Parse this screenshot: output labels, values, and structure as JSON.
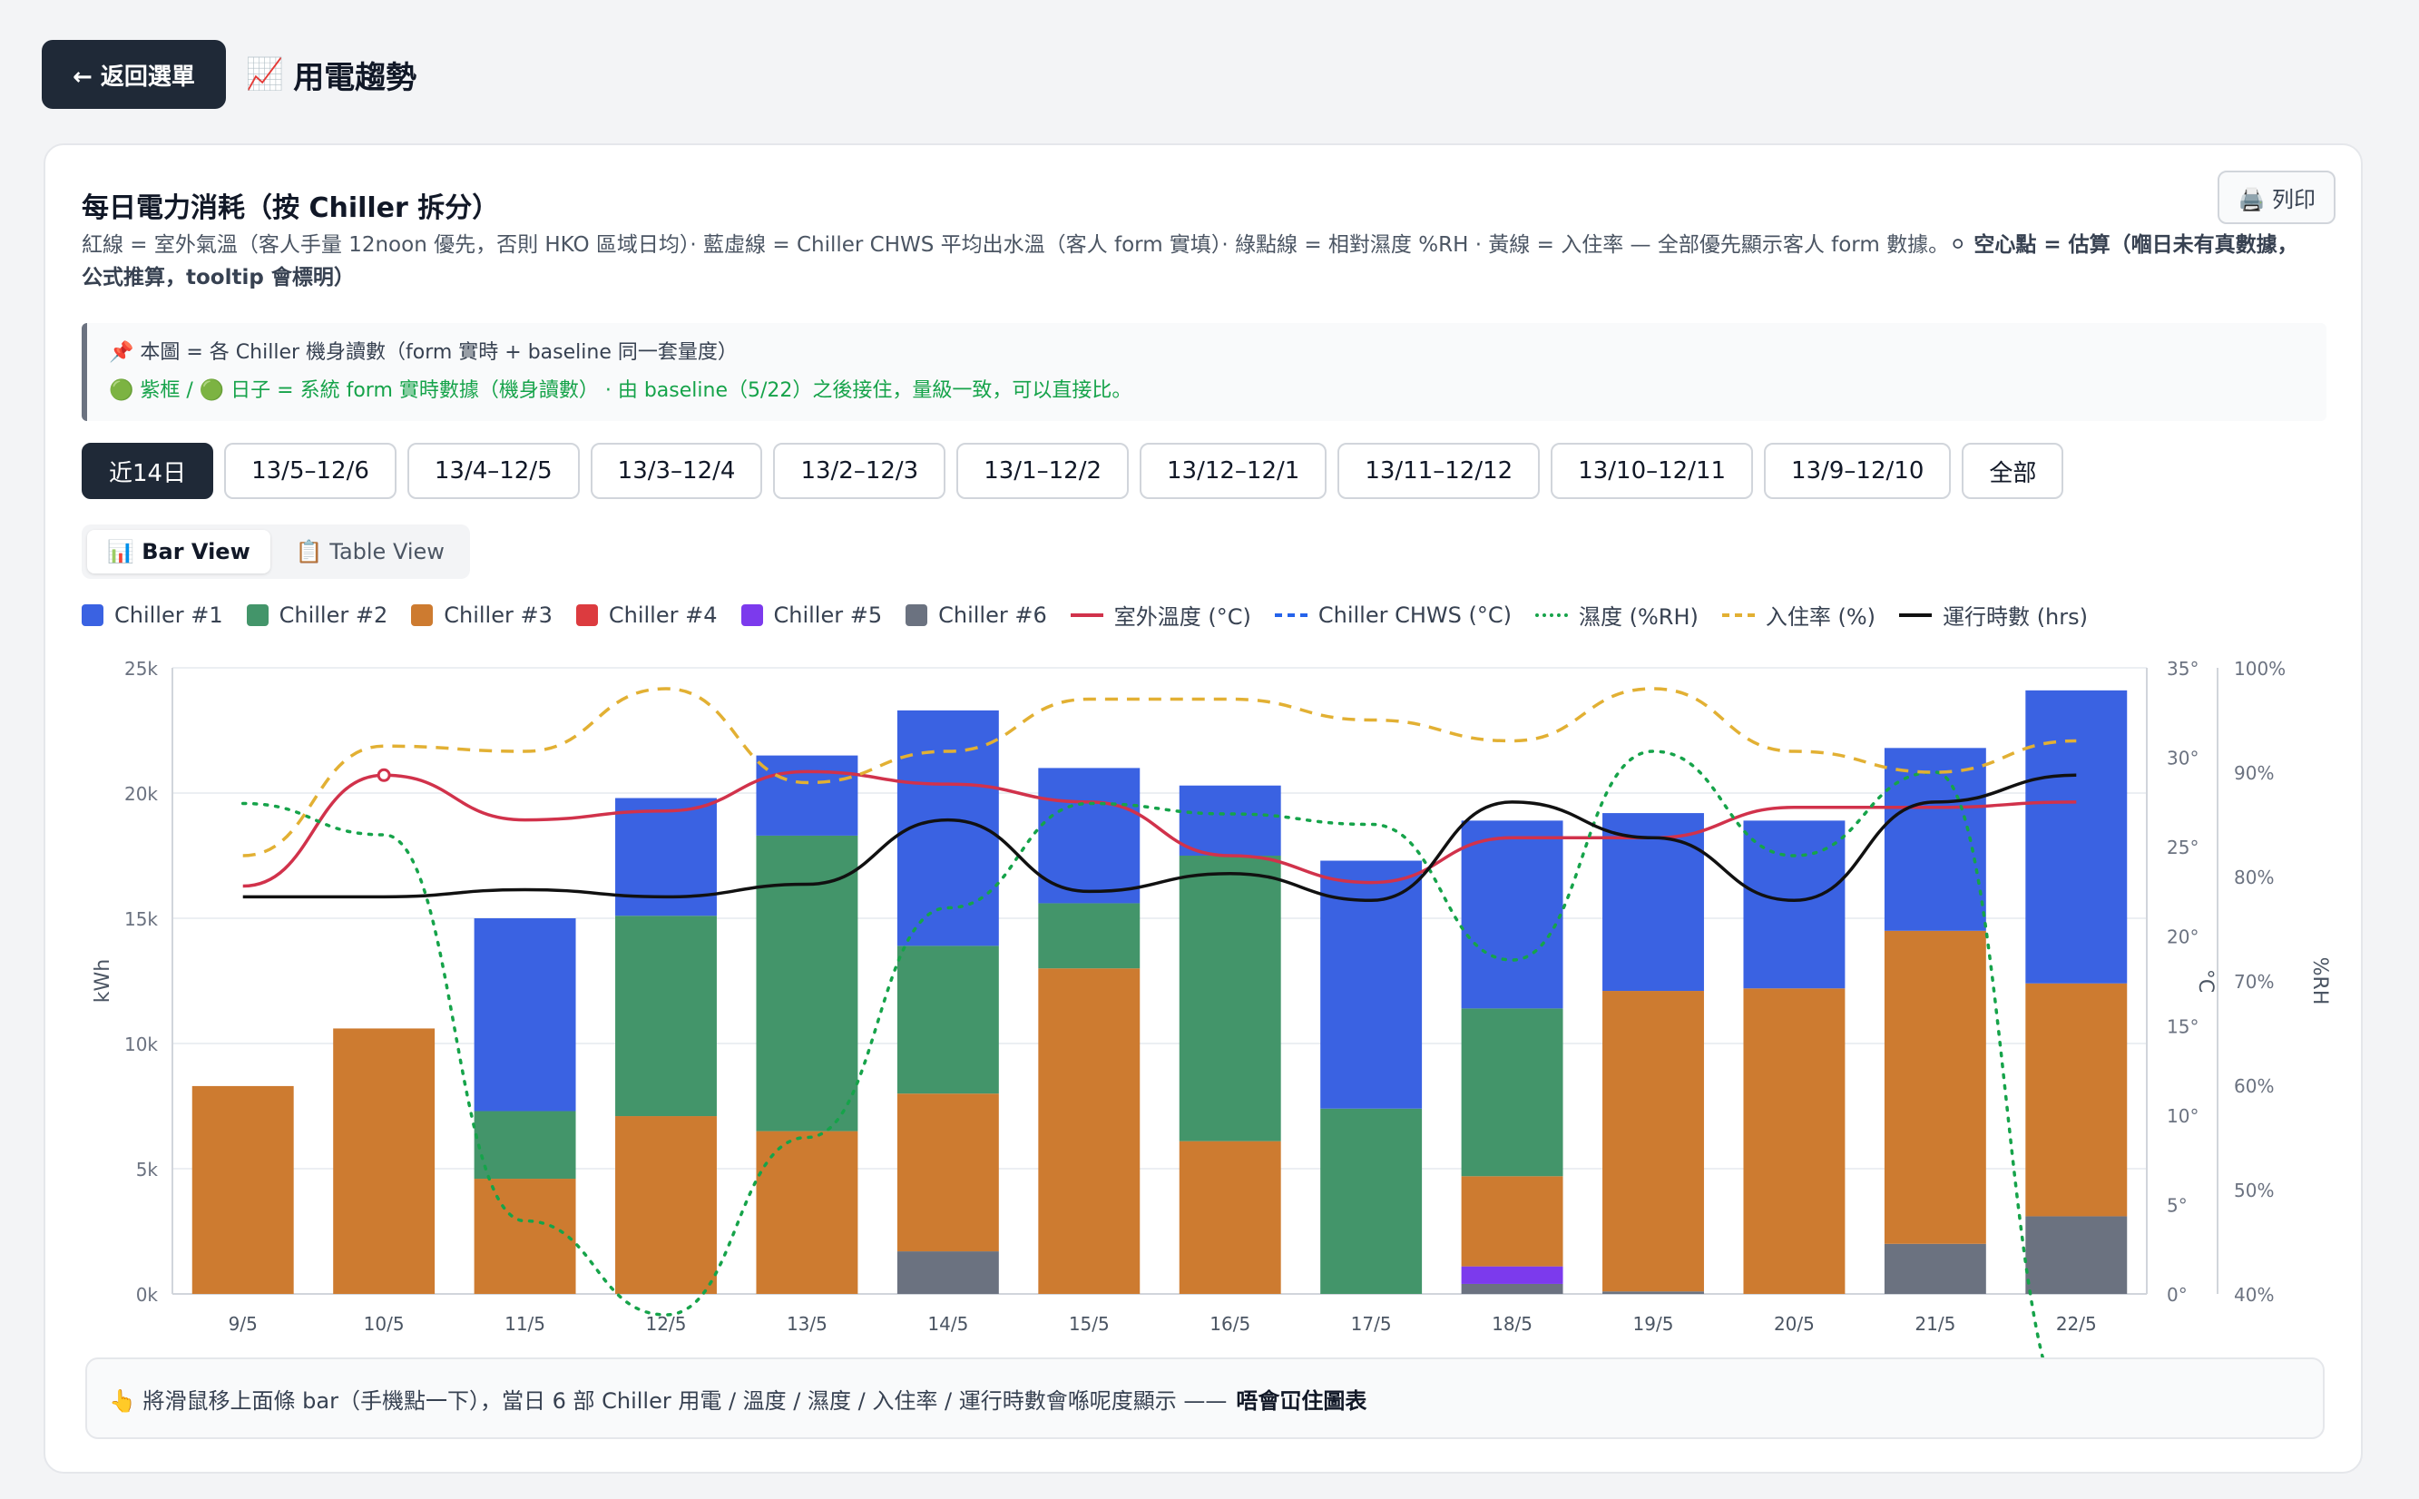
{
  "header": {
    "back_label": "← 返回選單",
    "title_icon": "📈",
    "title": "用電趨勢"
  },
  "card": {
    "title": "每日電力消耗（按 Chiller 拆分）",
    "print_label": "🖨️ 列印",
    "desc_main": "紅線 = 室外氣溫（客人手量 12noon 優先，否則 HKO 區域日均）· 藍虛線 = Chiller CHWS 平均出水溫（客人 form 實填）· 綠點線 = 相對濕度 %RH · 黃線 = 入住率 — 全部優先顯示客人 form 數據。",
    "desc_bold": "⚪ 空心點 = 估算（嗰日未有真數據，公式推算，tooltip 會標明）",
    "note_line1": "📌 本圖 = 各 Chiller 機身讀數（form 實時 + baseline 同一套量度）",
    "note_line2": "🟢 紫框 / 🟢 日子 = 系統 form 實時數據（機身讀數） · 由 baseline（5/22）之後接住，量級一致，可以直接比。",
    "ranges": [
      "近14日",
      "13/5–12/6",
      "13/4–12/5",
      "13/3–12/4",
      "13/2–12/3",
      "13/1–12/2",
      "13/12–12/1",
      "13/11–12/12",
      "13/10–12/11",
      "13/9–12/10",
      "全部"
    ],
    "views": [
      "📊 Bar View",
      "📋 Table View"
    ],
    "hint_main": "👆 將滑鼠移上面條 bar（手機點一下），當日 6 部 Chiller 用電 / 溫度 / 濕度 / 入住率 / 運行時數會喺呢度顯示 ——",
    "hint_bold": "唔會冚住圖表"
  },
  "colors": {
    "chiller1": "#3a62e2",
    "chiller2": "#43956a",
    "chiller3": "#cd7b30",
    "chiller4": "#dc3b3f",
    "chiller5": "#7c3aed",
    "chiller6": "#6b7280",
    "outdoor": "#d1324b",
    "chws": "#2563eb",
    "humidity": "#16a34a",
    "occupancy": "#e2b033",
    "runtime": "#111111"
  },
  "chart_data": {
    "type": "bar",
    "stacked": true,
    "categories": [
      "9/5",
      "10/5",
      "11/5",
      "12/5",
      "13/5",
      "14/5",
      "15/5",
      "16/5",
      "17/5",
      "18/5",
      "19/5",
      "20/5",
      "21/5",
      "22/5"
    ],
    "ylabel": "kWh",
    "ylim": [
      0,
      25000
    ],
    "yticks": [
      "0k",
      "5k",
      "10k",
      "15k",
      "20k",
      "25k"
    ],
    "y2label": "°C",
    "y2lim": [
      0,
      35
    ],
    "y2ticks": [
      "0°",
      "5°",
      "10°",
      "15°",
      "20°",
      "25°",
      "30°",
      "35°"
    ],
    "y3label": "%RH",
    "y3lim": [
      40,
      100
    ],
    "y3ticks": [
      "40%",
      "50%",
      "60%",
      "70%",
      "80%",
      "90%",
      "100%"
    ],
    "grid": true,
    "legend_position": "top-left",
    "series": [
      {
        "name": "Chiller #1",
        "values": [
          0,
          0,
          7700,
          4700,
          3200,
          9400,
          5400,
          2800,
          9900,
          7500,
          7100,
          6700,
          7300,
          11700
        ]
      },
      {
        "name": "Chiller #2",
        "values": [
          0,
          0,
          2700,
          8000,
          11800,
          5900,
          2600,
          11400,
          7400,
          6700,
          0,
          0,
          0,
          0
        ]
      },
      {
        "name": "Chiller #3",
        "values": [
          8300,
          10600,
          4600,
          7100,
          6500,
          6300,
          13000,
          6100,
          0,
          3600,
          12000,
          12200,
          12500,
          9300
        ]
      },
      {
        "name": "Chiller #4",
        "values": [
          0,
          0,
          0,
          0,
          0,
          0,
          0,
          0,
          0,
          0,
          0,
          0,
          0,
          0
        ]
      },
      {
        "name": "Chiller #5",
        "values": [
          0,
          0,
          0,
          0,
          0,
          0,
          0,
          0,
          0,
          700,
          0,
          0,
          0,
          0
        ]
      },
      {
        "name": "Chiller #6",
        "values": [
          0,
          0,
          0,
          0,
          0,
          1700,
          0,
          0,
          0,
          400,
          100,
          0,
          2000,
          3100
        ]
      }
    ],
    "lines": [
      {
        "name": "室外溫度 (°C)",
        "axis": "temp",
        "style": "solid",
        "values": [
          22.8,
          29.0,
          26.5,
          27.0,
          29.2,
          28.5,
          27.5,
          24.5,
          23.0,
          25.5,
          25.5,
          27.2,
          27.2,
          27.5
        ]
      },
      {
        "name": "Chiller CHWS (°C)",
        "axis": "temp",
        "style": "dash",
        "values": [
          null,
          null,
          null,
          null,
          null,
          null,
          null,
          null,
          null,
          null,
          null,
          null,
          null,
          null
        ]
      },
      {
        "name": "濕度 (%RH)",
        "axis": "humidity",
        "style": "dot",
        "values": [
          87,
          84,
          47,
          38,
          55,
          77,
          87,
          86,
          85,
          72,
          92,
          82,
          90,
          28
        ]
      },
      {
        "name": "入住率 (%)",
        "axis": "humidity",
        "style": "dash",
        "values": [
          82,
          92.5,
          92,
          98,
          89,
          92,
          97,
          97,
          95,
          93,
          98,
          92,
          90,
          93
        ]
      },
      {
        "name": "運行時數 (hrs)",
        "axis": "temp",
        "style": "solid",
        "values": [
          22.2,
          22.2,
          22.6,
          22.2,
          22.9,
          26.5,
          22.5,
          23.5,
          22.0,
          27.5,
          25.5,
          22.0,
          27.5,
          29.0
        ]
      }
    ]
  }
}
